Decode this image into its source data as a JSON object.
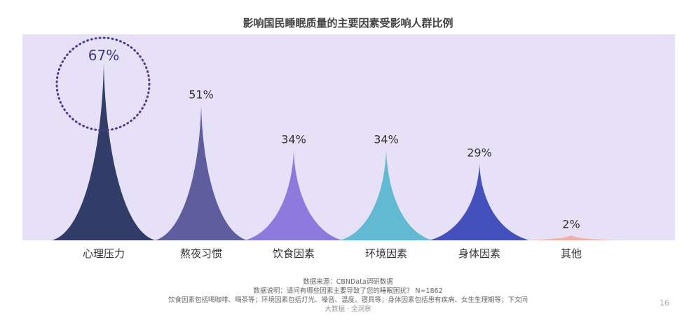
{
  "chart_data": {
    "type": "bar",
    "title": "影响国民睡眠质量的主要因素受影响人群比例",
    "categories": [
      "心理压力",
      "熬夜习惯",
      "饮食因素",
      "环境因素",
      "身体因素",
      "其他"
    ],
    "values": [
      67,
      51,
      34,
      34,
      29,
      2
    ],
    "value_labels": [
      "67%",
      "51%",
      "34%",
      "34%",
      "29%",
      "2%"
    ],
    "unit": "%",
    "ylim": [
      0,
      70
    ],
    "grid": false,
    "highlight_category": "心理压力",
    "colors": [
      "#323C68",
      "#5E5E9E",
      "#8C7ADC",
      "#62B9D2",
      "#4451BC",
      "#F2B0A3"
    ],
    "background_color": "#E6E1F7",
    "highlight_ring_color": "#4A3D8F"
  },
  "footer": {
    "source": "数据来源：CBNData调研数据",
    "note": "数据说明：请问有哪些因素主要导致了您的睡眠困扰？ N=1862",
    "detail": "饮食因素包括喝咖啡、喝茶等；环境因素包括灯光、噪音、温度、寝具等；身体因素包括患有疾病、女生生理期等；下文同",
    "brand": "大数据 · 全洞察"
  },
  "page_number": "16"
}
